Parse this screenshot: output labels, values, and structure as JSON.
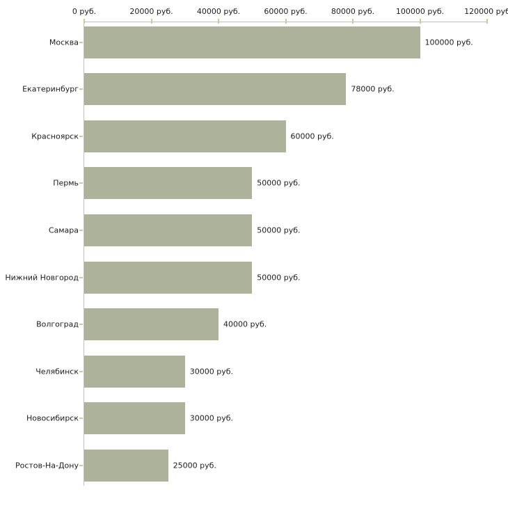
{
  "chart_data": {
    "type": "bar",
    "orientation": "horizontal",
    "title": "",
    "unit": "руб.",
    "categories": [
      "Москва",
      "Екатеринбург",
      "Красноярск",
      "Пермь",
      "Самара",
      "Нижний Новгород",
      "Волгоград",
      "Челябинск",
      "Новосибирск",
      "Ростов-На-Дону"
    ],
    "values": [
      100000,
      78000,
      60000,
      50000,
      50000,
      50000,
      40000,
      30000,
      30000,
      25000
    ],
    "value_labels": [
      "100000 руб.",
      "78000 руб.",
      "60000 руб.",
      "50000 руб.",
      "50000 руб.",
      "50000 руб.",
      "40000 руб.",
      "30000 руб.",
      "30000 руб.",
      "25000 руб."
    ],
    "x_axis": {
      "position": "top",
      "range": [
        0,
        120000
      ],
      "tick_values": [
        0,
        20000,
        40000,
        60000,
        80000,
        100000,
        120000
      ],
      "tick_labels": [
        "0 руб.",
        "20000 руб.",
        "40000 руб.",
        "60000 руб.",
        "80000 руб.",
        "100000 руб.",
        "120000 руб"
      ]
    },
    "grid": false,
    "legend": false,
    "colors": {
      "bar": "#adb29b",
      "axis_line": "#c0c0c0",
      "tick_mark": "#c9c9a5",
      "text": "#1c1c1c",
      "background": "#ffffff"
    }
  }
}
